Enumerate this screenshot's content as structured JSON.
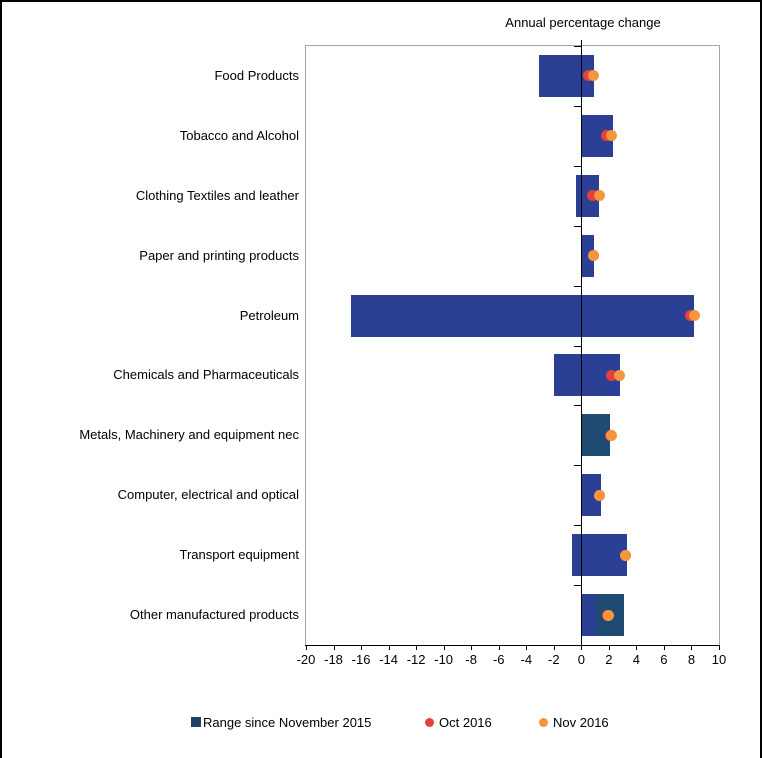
{
  "title": "Annual percentage change",
  "colors": {
    "bar_royal": "#2b4094",
    "bar_navy": "#1f4a72",
    "legend_navy": "#1d4265",
    "oct_red": "#e6403a",
    "nov_orange": "#f7953f",
    "plot_border_gray": "#a6a6a6",
    "axis_black": "#000000"
  },
  "chart_data": {
    "type": "bar",
    "variant": "horizontal-range-bar-with-dot-markers",
    "title": "Annual percentage change",
    "xlabel": "",
    "ylabel": "",
    "xlim": [
      -20,
      10
    ],
    "xticks": [
      -20,
      -18,
      -16,
      -14,
      -12,
      -10,
      -8,
      -6,
      -4,
      -2,
      0,
      2,
      4,
      6,
      8,
      10
    ],
    "grid": false,
    "legend_position": "bottom",
    "categories": [
      "Food Products",
      "Tobacco and Alcohol",
      "Clothing Textiles and leather",
      "Paper and printing products",
      "Petroleum",
      "Chemicals and Pharmaceuticals",
      "Metals, Machinery and equipment nec",
      "Computer, electrical and optical",
      "Transport equipment",
      "Other manufactured products"
    ],
    "range_series": {
      "name": "Range since November 2015",
      "bars": [
        {
          "segments": [
            {
              "low": -3.1,
              "high": 0.9,
              "shade": "bar_royal"
            }
          ]
        },
        {
          "segments": [
            {
              "low": 0.0,
              "high": 2.3,
              "shade": "bar_royal"
            }
          ]
        },
        {
          "segments": [
            {
              "low": -0.4,
              "high": 1.3,
              "shade": "bar_royal"
            }
          ]
        },
        {
          "segments": [
            {
              "low": 0.0,
              "high": 0.9,
              "shade": "bar_royal"
            }
          ]
        },
        {
          "segments": [
            {
              "low": -16.7,
              "high": 8.2,
              "shade": "bar_royal"
            }
          ]
        },
        {
          "segments": [
            {
              "low": -2.0,
              "high": 2.8,
              "shade": "bar_royal"
            }
          ]
        },
        {
          "segments": [
            {
              "low": 0.0,
              "high": 2.1,
              "shade": "bar_navy"
            }
          ]
        },
        {
          "segments": [
            {
              "low": 0.0,
              "high": 1.4,
              "shade": "bar_royal"
            }
          ]
        },
        {
          "segments": [
            {
              "low": -0.7,
              "high": 3.3,
              "shade": "bar_royal"
            }
          ]
        },
        {
          "segments": [
            {
              "low": 0.0,
              "high": 1.1,
              "shade": "bar_royal"
            },
            {
              "low": 1.1,
              "high": 3.1,
              "shade": "bar_navy"
            }
          ]
        }
      ]
    },
    "marker_series": [
      {
        "name": "Oct 2016",
        "color_key": "oct_red",
        "values": [
          0.5,
          1.8,
          0.8,
          0.9,
          7.9,
          2.2,
          2.1,
          1.3,
          3.2,
          1.9
        ]
      },
      {
        "name": "Nov 2016",
        "color_key": "nov_orange",
        "values": [
          0.9,
          2.2,
          1.3,
          0.9,
          8.2,
          2.8,
          2.2,
          1.3,
          3.2,
          2.0
        ]
      }
    ]
  },
  "legend": {
    "range_label": "Range since November 2015",
    "oct_label": "Oct 2016",
    "nov_label": "Nov 2016"
  }
}
